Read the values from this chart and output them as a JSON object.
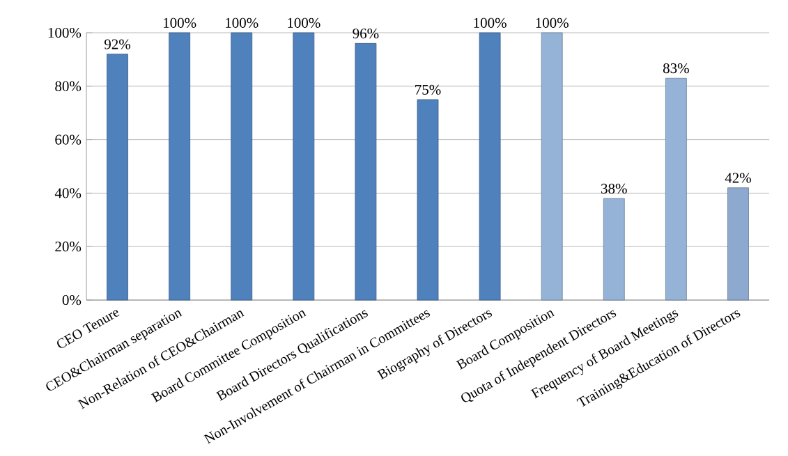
{
  "chart_data": {
    "type": "bar",
    "categories": [
      "CEO Tenure",
      "CEO&Chairman separation",
      "Non-Relation of CEO&Chairman",
      "Board Committee Composition",
      "Board Directors Qualifications",
      "Non-Involvement of Chairman in Committees",
      "Biography of Directors",
      "Board Composition",
      "Quota of Independent Directors",
      "Frequency of Board Meetings",
      "Training&Education of Directors"
    ],
    "values": [
      92,
      100,
      100,
      100,
      96,
      75,
      100,
      100,
      38,
      83,
      42
    ],
    "value_labels": [
      "92%",
      "100%",
      "100%",
      "100%",
      "96%",
      "75%",
      "100%",
      "100%",
      "38%",
      "83%",
      "42%"
    ],
    "colors": [
      "#4f81bd",
      "#4f81bd",
      "#4f81bd",
      "#4f81bd",
      "#4f81bd",
      "#4f81bd",
      "#4f81bd",
      "#95b3d7",
      "#95b3d7",
      "#95b3d7",
      "#8ea9cf"
    ],
    "ylim": [
      0,
      100
    ],
    "yticks": [
      {
        "value": 0,
        "label": "0%"
      },
      {
        "value": 20,
        "label": "20%"
      },
      {
        "value": 40,
        "label": "40%"
      },
      {
        "value": 60,
        "label": "60%"
      },
      {
        "value": 80,
        "label": "80%"
      },
      {
        "value": 100,
        "label": "100%"
      }
    ],
    "grid": "y"
  }
}
